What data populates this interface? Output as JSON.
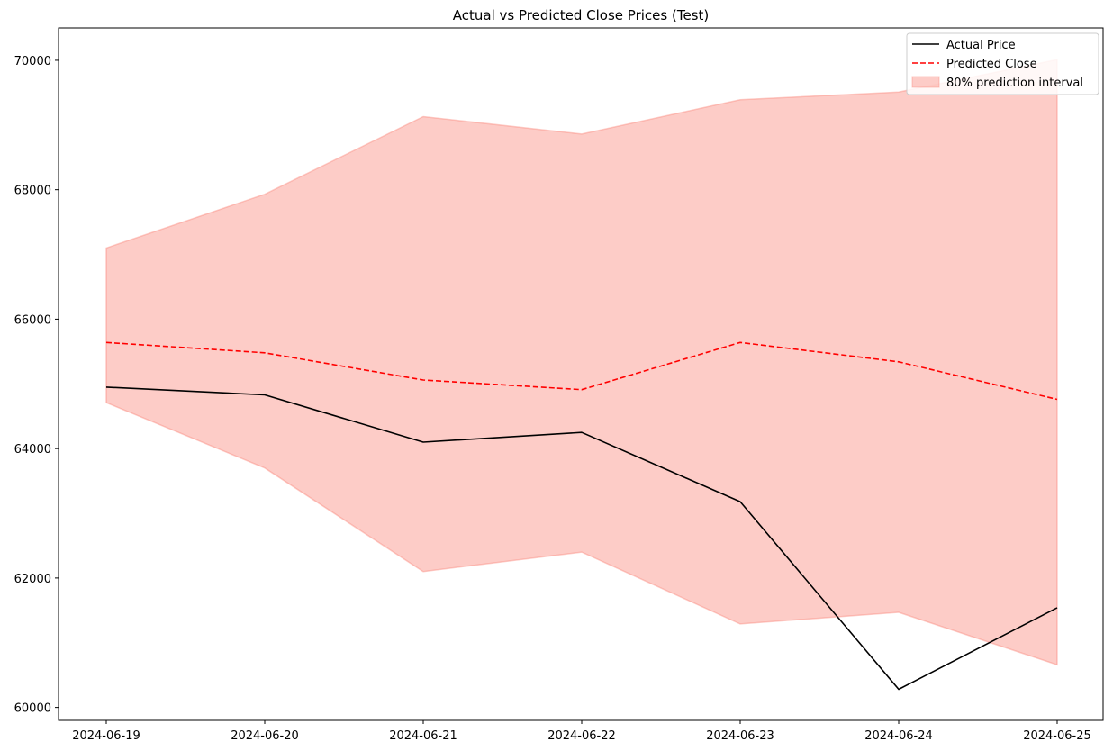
{
  "chart_data": {
    "type": "line",
    "title": "Actual vs Predicted Close Prices (Test)",
    "xlabel": "",
    "ylabel": "",
    "x": [
      "2024-06-19",
      "2024-06-20",
      "2024-06-21",
      "2024-06-22",
      "2024-06-23",
      "2024-06-24",
      "2024-06-25"
    ],
    "ylim": [
      59800,
      70500
    ],
    "yticks": [
      60000,
      62000,
      64000,
      66000,
      68000,
      70000
    ],
    "grid": false,
    "legend_position": "top-right",
    "series": [
      {
        "name": "Actual Price",
        "style": "solid",
        "color": "#000000",
        "values": [
          64950,
          64830,
          64100,
          64250,
          63180,
          60280,
          61540
        ]
      },
      {
        "name": "Predicted Close",
        "style": "dashed",
        "color": "#ff0000",
        "values": [
          65640,
          65480,
          65060,
          64910,
          65640,
          65340,
          64760
        ]
      }
    ],
    "band": {
      "name": "80% prediction interval",
      "color": "#fa8072",
      "lower": [
        64710,
        63700,
        62100,
        62400,
        61290,
        61470,
        60660
      ],
      "upper": [
        67100,
        67930,
        69130,
        68860,
        69390,
        69510,
        70010
      ]
    }
  }
}
